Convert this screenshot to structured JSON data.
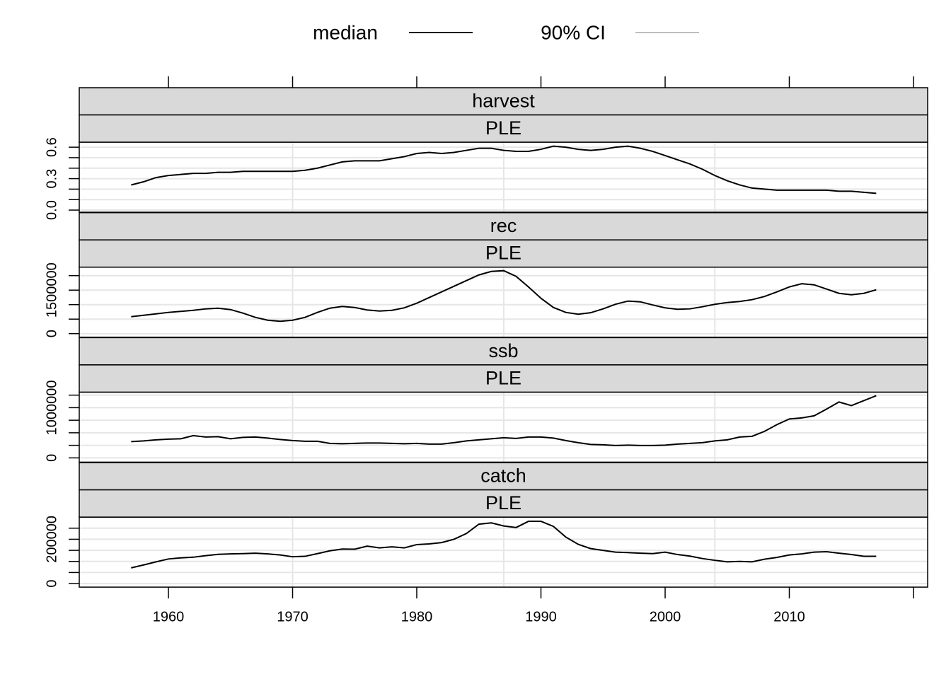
{
  "legend": [
    {
      "name": "median",
      "color": "#000000"
    },
    {
      "name": "90% CI",
      "color": "#bebebe"
    }
  ],
  "chart_data": [
    {
      "type": "line",
      "title": "harvest",
      "subtitle": "PLE",
      "x": [
        1957,
        1958,
        1959,
        1960,
        1961,
        1962,
        1963,
        1964,
        1965,
        1966,
        1967,
        1968,
        1969,
        1970,
        1971,
        1972,
        1973,
        1974,
        1975,
        1976,
        1977,
        1978,
        1979,
        1980,
        1981,
        1982,
        1983,
        1984,
        1985,
        1986,
        1987,
        1988,
        1989,
        1990,
        1991,
        1992,
        1993,
        1994,
        1995,
        1996,
        1997,
        1998,
        1999,
        2000,
        2001,
        2002,
        2003,
        2004,
        2005,
        2006,
        2007,
        2008,
        2009,
        2010,
        2011,
        2012,
        2013,
        2014,
        2015,
        2016,
        2017
      ],
      "series": [
        {
          "color": "#000000",
          "values": [
            0.24,
            0.27,
            0.31,
            0.33,
            0.34,
            0.35,
            0.35,
            0.36,
            0.36,
            0.37,
            0.37,
            0.37,
            0.37,
            0.37,
            0.38,
            0.4,
            0.43,
            0.46,
            0.47,
            0.47,
            0.47,
            0.49,
            0.51,
            0.54,
            0.55,
            0.54,
            0.55,
            0.57,
            0.59,
            0.59,
            0.57,
            0.56,
            0.56,
            0.58,
            0.61,
            0.6,
            0.58,
            0.57,
            0.58,
            0.6,
            0.61,
            0.59,
            0.56,
            0.52,
            0.48,
            0.44,
            0.39,
            0.33,
            0.28,
            0.24,
            0.21,
            0.2,
            0.19,
            0.19,
            0.19,
            0.19,
            0.19,
            0.18,
            0.18,
            0.17,
            0.16
          ]
        }
      ],
      "xlim": [
        1952.82,
        2021.14
      ],
      "ylim": [
        -0.02,
        0.648
      ],
      "yticks": [
        {
          "value": 0,
          "label": "0.0"
        },
        0.3,
        0.6
      ],
      "yminor": [
        0.1,
        0.2,
        0.4,
        0.5
      ],
      "xgrid": [
        1970,
        1987,
        2004
      ]
    },
    {
      "type": "line",
      "title": "rec",
      "subtitle": "PLE",
      "x": [
        1957,
        1958,
        1959,
        1960,
        1961,
        1962,
        1963,
        1964,
        1965,
        1966,
        1967,
        1968,
        1969,
        1970,
        1971,
        1972,
        1973,
        1974,
        1975,
        1976,
        1977,
        1978,
        1979,
        1980,
        1981,
        1982,
        1983,
        1984,
        1985,
        1986,
        1987,
        1988,
        1989,
        1990,
        1991,
        1992,
        1993,
        1994,
        1995,
        1996,
        1997,
        1998,
        1999,
        2000,
        2001,
        2002,
        2003,
        2004,
        2005,
        2006,
        2007,
        2008,
        2009,
        2010,
        2011,
        2012,
        2013,
        2014,
        2015,
        2016,
        2017
      ],
      "series": [
        {
          "color": "#000000",
          "values": [
            585000,
            634000,
            683000,
            732000,
            768000,
            805000,
            854000,
            878000,
            829000,
            707000,
            561000,
            463000,
            427000,
            463000,
            561000,
            732000,
            878000,
            939000,
            902000,
            817000,
            780000,
            805000,
            890000,
            1049000,
            1244000,
            1439000,
            1634000,
            1829000,
            2024000,
            2146000,
            2171000,
            1976000,
            1610000,
            1220000,
            902000,
            732000,
            671000,
            720000,
            854000,
            1012000,
            1122000,
            1098000,
            988000,
            890000,
            841000,
            854000,
            927000,
            1012000,
            1073000,
            1110000,
            1171000,
            1280000,
            1439000,
            1610000,
            1720000,
            1683000,
            1537000,
            1390000,
            1341000,
            1390000,
            1512000
          ]
        }
      ],
      "xlim": [
        1952.82,
        2021.14
      ],
      "ylim": [
        -122000,
        2293000
      ],
      "yticks": [
        0,
        1500000
      ],
      "yminor": [
        500000,
        1000000,
        2000000
      ],
      "xgrid": [
        1970,
        1987,
        2004
      ]
    },
    {
      "type": "line",
      "title": "ssb",
      "subtitle": "PLE",
      "x": [
        1957,
        1958,
        1959,
        1960,
        1961,
        1962,
        1963,
        1964,
        1965,
        1966,
        1967,
        1968,
        1969,
        1970,
        1971,
        1972,
        1973,
        1974,
        1975,
        1976,
        1977,
        1978,
        1979,
        1980,
        1981,
        1982,
        1983,
        1984,
        1985,
        1986,
        1987,
        1988,
        1989,
        1990,
        1991,
        1992,
        1993,
        1994,
        1995,
        1996,
        1997,
        1998,
        1999,
        2000,
        2001,
        2002,
        2003,
        2004,
        2005,
        2006,
        2007,
        2008,
        2009,
        2010,
        2011,
        2012,
        2013,
        2014,
        2015,
        2016,
        2017
      ],
      "series": [
        {
          "color": "#000000",
          "values": [
            324000,
            338000,
            359000,
            373000,
            380000,
            444000,
            415000,
            423000,
            380000,
            408000,
            415000,
            394000,
            366000,
            345000,
            331000,
            331000,
            289000,
            282000,
            289000,
            296000,
            296000,
            289000,
            282000,
            289000,
            275000,
            275000,
            303000,
            338000,
            359000,
            380000,
            401000,
            387000,
            415000,
            415000,
            394000,
            345000,
            303000,
            268000,
            261000,
            246000,
            254000,
            246000,
            246000,
            254000,
            275000,
            289000,
            303000,
            338000,
            359000,
            415000,
            430000,
            528000,
            662000,
            775000,
            796000,
            838000,
            972000,
            1113000,
            1042000,
            1141000,
            1239000
          ]
        }
      ],
      "xlim": [
        1952.82,
        2021.14
      ],
      "ylim": [
        -85000,
        1310000
      ],
      "yticks": [
        0,
        1000000
      ],
      "yminor": [
        250000,
        500000,
        750000,
        1250000
      ],
      "xgrid": [
        1970,
        1987,
        2004
      ]
    },
    {
      "type": "line",
      "title": "catch",
      "subtitle": "PLE",
      "x": [
        1957,
        1958,
        1959,
        1960,
        1961,
        1962,
        1963,
        1964,
        1965,
        1966,
        1967,
        1968,
        1969,
        1970,
        1971,
        1972,
        1973,
        1974,
        1975,
        1976,
        1977,
        1978,
        1979,
        1980,
        1981,
        1982,
        1983,
        1984,
        1985,
        1986,
        1987,
        1988,
        1989,
        1990,
        1991,
        1992,
        1993,
        1994,
        1995,
        1996,
        1997,
        1998,
        1999,
        2000,
        2001,
        2002,
        2003,
        2004,
        2005,
        2006,
        2007,
        2008,
        2009,
        2010,
        2011,
        2012,
        2013,
        2014,
        2015,
        2016,
        2017
      ],
      "series": [
        {
          "color": "#000000",
          "values": [
            71000,
            84000,
            98000,
            111000,
            116000,
            119000,
            126000,
            132000,
            134000,
            135000,
            137000,
            134000,
            129000,
            121000,
            123000,
            135000,
            148000,
            156000,
            155000,
            169000,
            161000,
            166000,
            161000,
            176000,
            179000,
            185000,
            200000,
            226000,
            268000,
            274000,
            260000,
            253000,
            281000,
            281000,
            258000,
            210000,
            177000,
            158000,
            150000,
            142000,
            140000,
            137000,
            135000,
            142000,
            131000,
            124000,
            113000,
            105000,
            98000,
            100000,
            98000,
            110000,
            118000,
            129000,
            134000,
            142000,
            144000,
            137000,
            131000,
            123000,
            123000
          ]
        }
      ],
      "xlim": [
        1952.82,
        2021.14
      ],
      "ylim": [
        -16000,
        300000
      ],
      "yticks": [
        0,
        200000
      ],
      "yminor": [
        50000,
        100000,
        150000,
        250000
      ],
      "xgrid": [
        1970,
        1987,
        2004
      ],
      "xticks": [
        1960,
        1970,
        1980,
        1990,
        2000,
        2010
      ],
      "xminor": [
        2020
      ]
    }
  ]
}
